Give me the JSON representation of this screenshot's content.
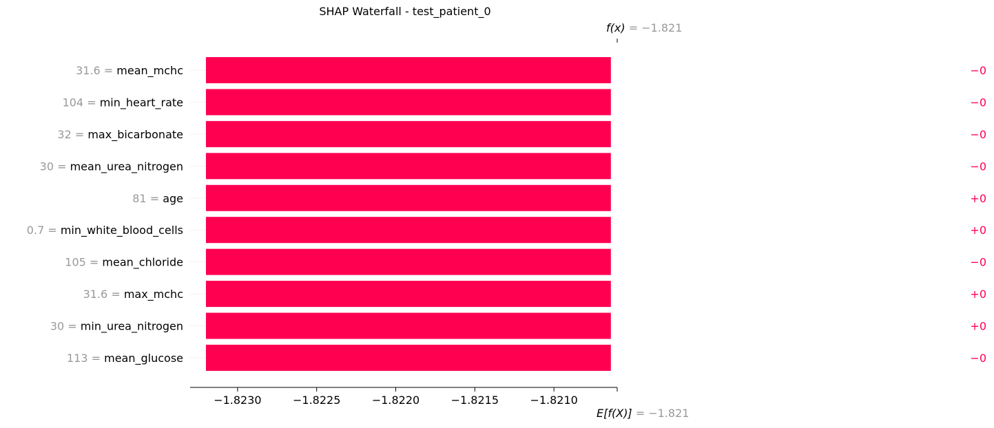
{
  "chart_data": {
    "type": "bar",
    "title": "SHAP Waterfall - test_patient_0",
    "fx_label": "f(x)",
    "fx_value": "= −1.821",
    "efx_label": "E[f(X)]",
    "efx_value": "= −1.821",
    "xlim": [
      -1.8233,
      -1.8206
    ],
    "x_ticks": [
      -1.823,
      -1.8225,
      -1.822,
      -1.8215,
      -1.821
    ],
    "x_tick_labels": [
      "−1.8230",
      "−1.8225",
      "−1.8220",
      "−1.8215",
      "−1.8210"
    ],
    "bar_start": -1.8232,
    "bar_end": -1.82064,
    "features": [
      {
        "value": "31.6",
        "name": "mean_mchc",
        "shap": "−0"
      },
      {
        "value": "104",
        "name": "min_heart_rate",
        "shap": "−0"
      },
      {
        "value": "32",
        "name": "max_bicarbonate",
        "shap": "−0"
      },
      {
        "value": "30",
        "name": "mean_urea_nitrogen",
        "shap": "−0"
      },
      {
        "value": "81",
        "name": "age",
        "shap": "+0"
      },
      {
        "value": "0.7",
        "name": "min_white_blood_cells",
        "shap": "+0"
      },
      {
        "value": "105",
        "name": "mean_chloride",
        "shap": "−0"
      },
      {
        "value": "31.6",
        "name": "max_mchc",
        "shap": "+0"
      },
      {
        "value": "30",
        "name": "min_urea_nitrogen",
        "shap": "+0"
      },
      {
        "value": "113",
        "name": "mean_glucose",
        "shap": "−0"
      }
    ],
    "colors": {
      "bar": "#ff0051",
      "feature_value": "#999999",
      "feature_name": "#000000",
      "shap_label": "#ff0051",
      "gridline": "#cccccc"
    }
  }
}
